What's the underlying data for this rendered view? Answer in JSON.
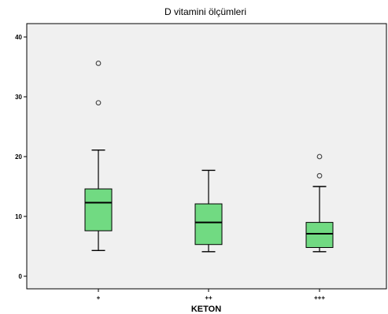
{
  "chart_data": {
    "type": "boxplot",
    "title": "D vitamini ölçümleri",
    "xlabel": "KETON",
    "ylabel": "",
    "ylim": [
      -2,
      42
    ],
    "yticks": [
      0,
      10,
      20,
      30,
      40
    ],
    "categories": [
      "+",
      "++",
      "+++"
    ],
    "boxes": [
      {
        "category": "+",
        "min": 4.3,
        "q1": 7.6,
        "median": 12.3,
        "q3": 14.6,
        "max": 21.1,
        "outliers": [
          29.0,
          35.6
        ]
      },
      {
        "category": "++",
        "min": 4.1,
        "q1": 5.3,
        "median": 9.0,
        "q3": 12.1,
        "max": 17.7,
        "outliers": []
      },
      {
        "category": "+++",
        "min": 4.1,
        "q1": 4.8,
        "median": 7.1,
        "q3": 9.0,
        "max": 15.0,
        "outliers": [
          16.8,
          20.0
        ]
      }
    ],
    "colors": {
      "plot_background": "#f0f0f0",
      "box_fill": "#71da82",
      "box_stroke": "#000000",
      "outlier_stroke": "#4d4d4d"
    },
    "grid": false,
    "legend": "none"
  }
}
